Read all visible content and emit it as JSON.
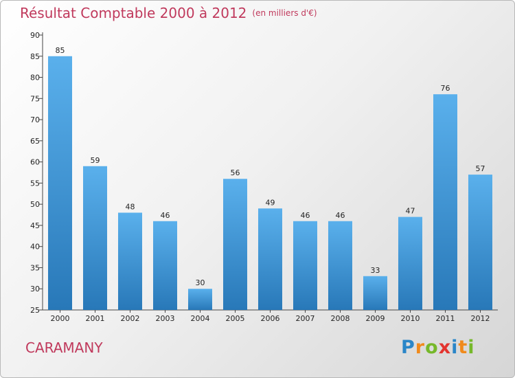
{
  "title": "Résultat Comptable 2000 à 2012",
  "title_unit": "(en milliers d'€)",
  "commune": "CARAMANY",
  "logo": {
    "letters": [
      "P",
      "r",
      "o",
      "x",
      "i",
      "t",
      "i"
    ],
    "colors": [
      "#2a86c8",
      "#f08a1c",
      "#76b82a",
      "#e3342f",
      "#2a86c8",
      "#f08a1c",
      "#76b82a"
    ]
  },
  "colors": {
    "bar_top": "#5ab0ec",
    "bar_bottom": "#2878b8",
    "title": "#c0395c"
  },
  "chart_data": {
    "type": "bar",
    "categories": [
      "2000",
      "2001",
      "2002",
      "2003",
      "2004",
      "2005",
      "2006",
      "2007",
      "2008",
      "2009",
      "2010",
      "2011",
      "2012"
    ],
    "values": [
      85,
      59,
      48,
      46,
      30,
      56,
      49,
      46,
      46,
      33,
      47,
      76,
      57
    ],
    "ylim": [
      25,
      90
    ],
    "yticks": [
      25,
      30,
      35,
      40,
      45,
      50,
      55,
      60,
      65,
      70,
      75,
      80,
      85,
      90
    ],
    "grid": false,
    "legend": "none"
  }
}
